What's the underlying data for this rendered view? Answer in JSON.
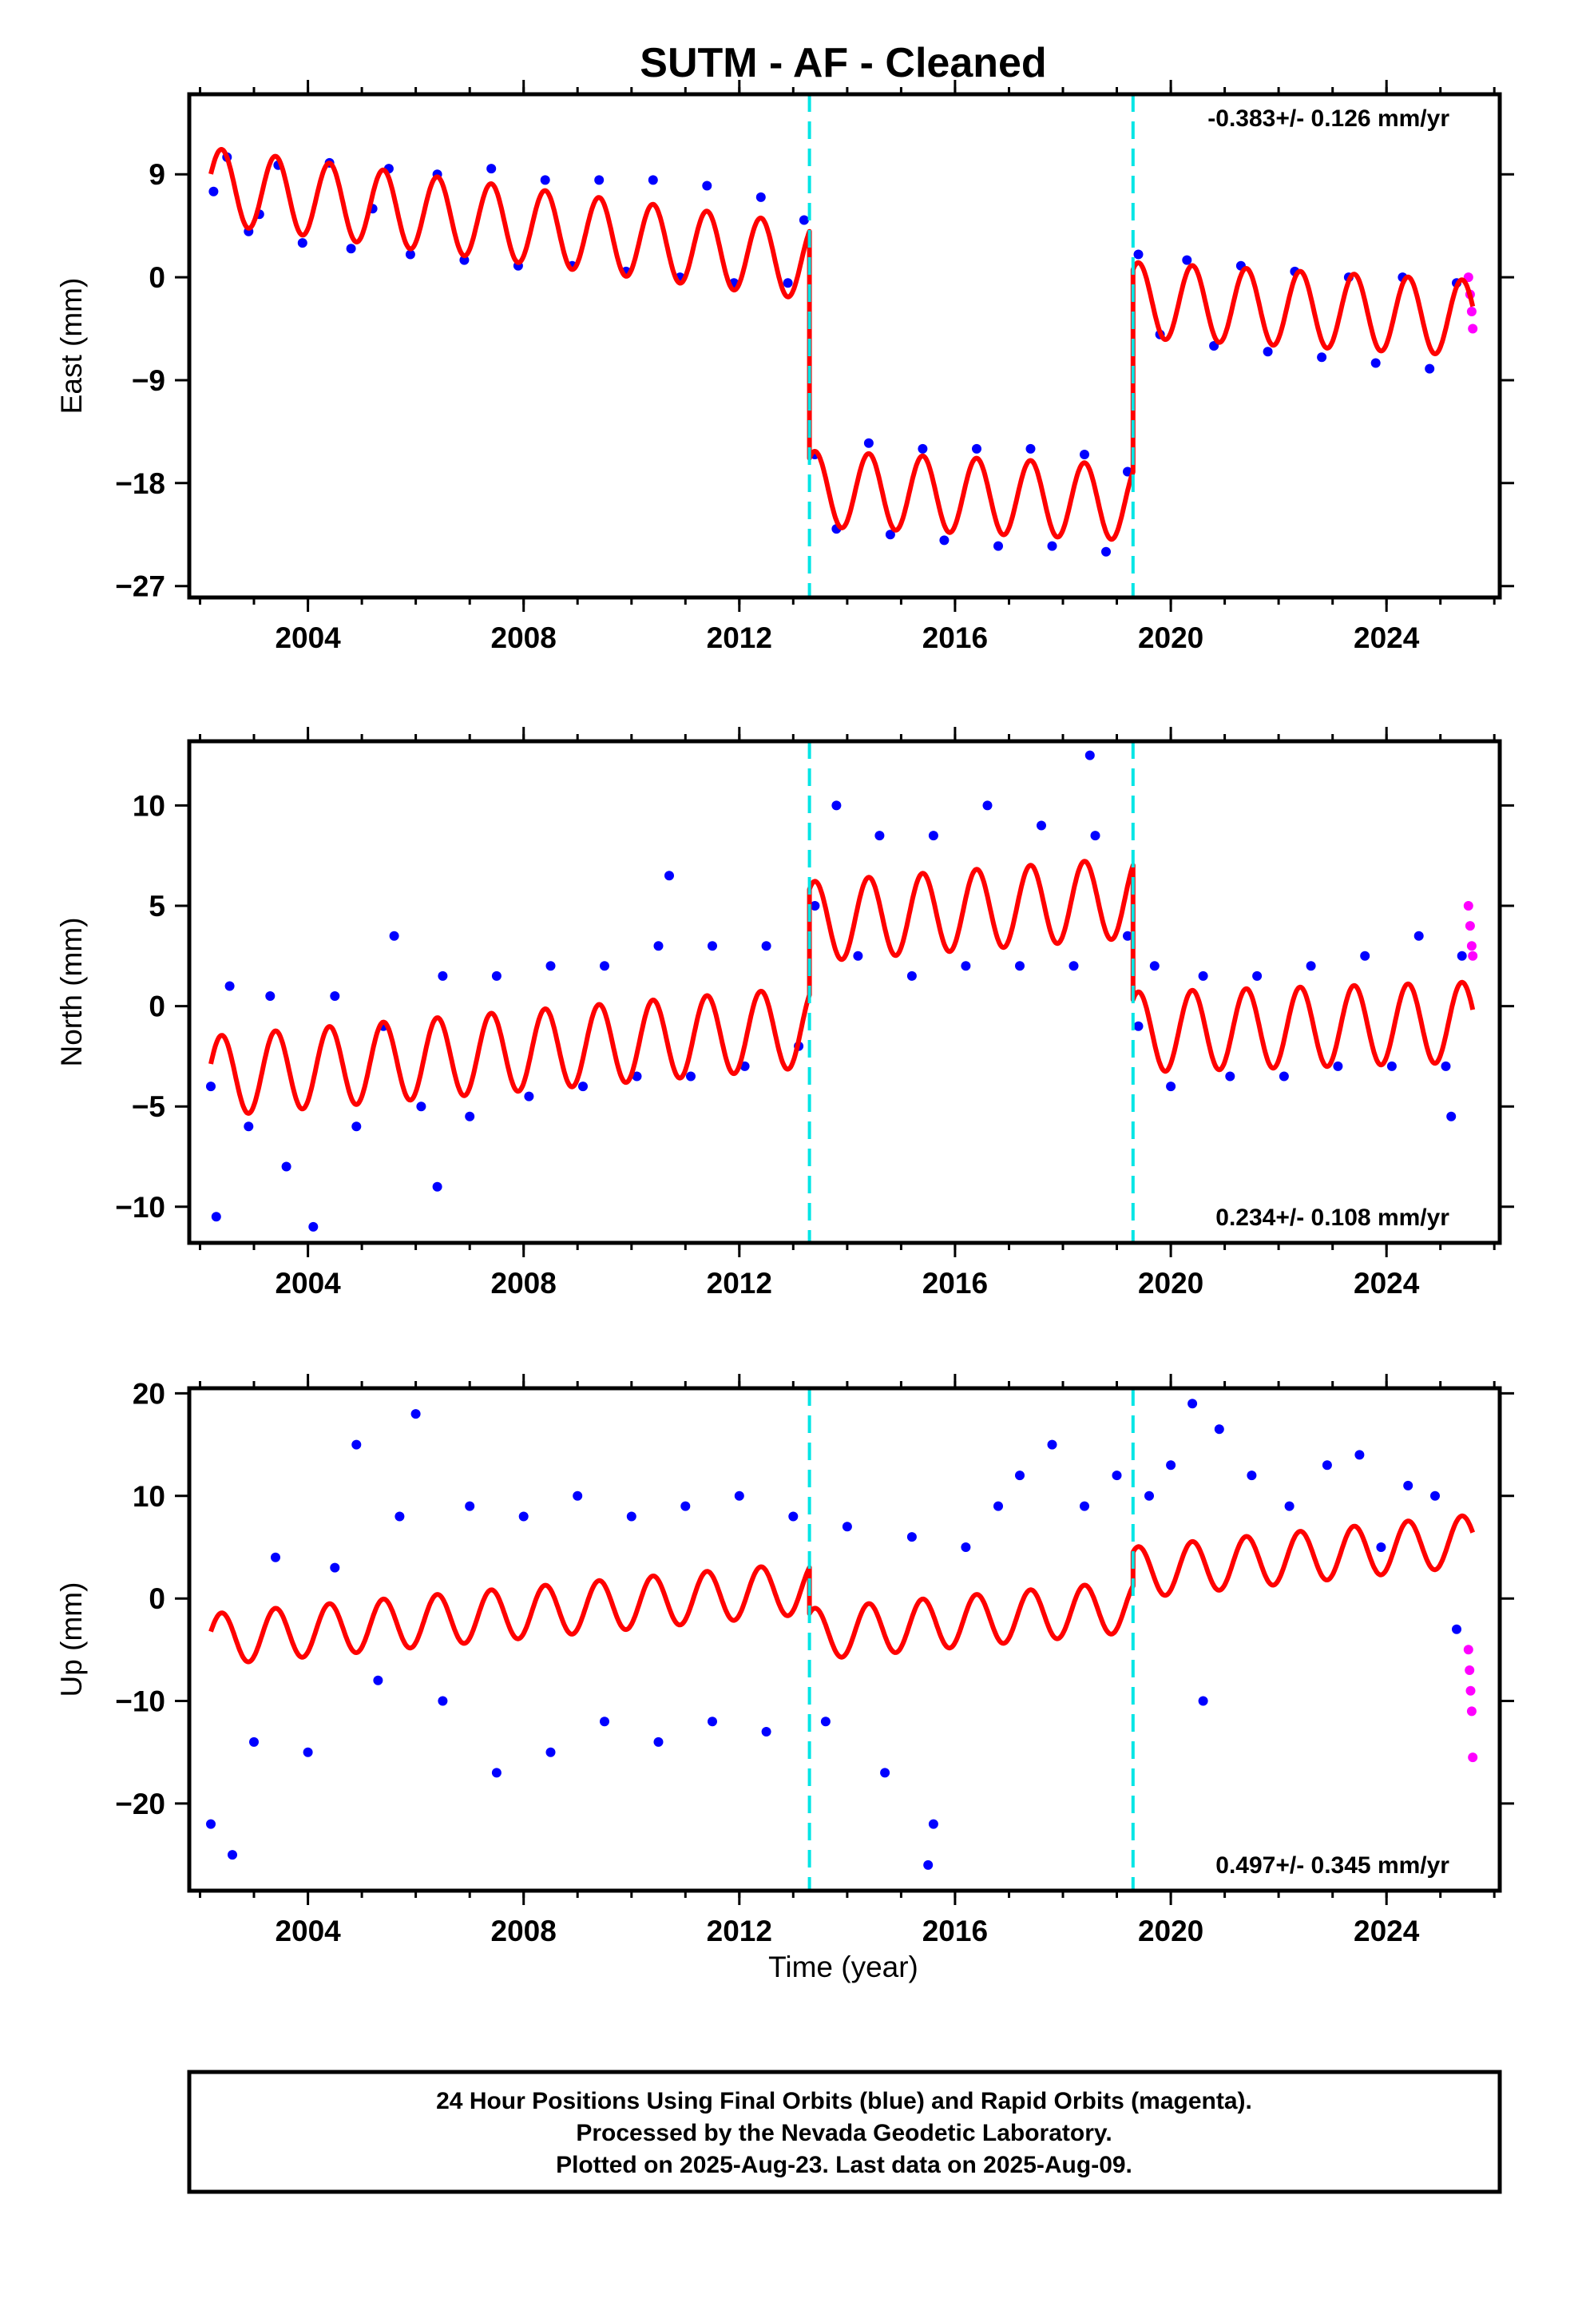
{
  "title": "SUTM  - AF - Cleaned",
  "xlabel": "Time (year)",
  "footer": {
    "line1": "24 Hour Positions Using Final Orbits (blue) and Rapid Orbits (magenta).",
    "line2": "Processed by the Nevada Geodetic Laboratory.",
    "line3": "Plotted on 2025-Aug-23. Last data on 2025-Aug-09."
  },
  "colors": {
    "final": "#0000ff",
    "rapid": "#ff00ff",
    "model": "#ff0000",
    "step": "#00e5e5"
  },
  "chart_data": [
    {
      "type": "scatter",
      "ylabel": "East (mm)",
      "rate": "-0.383+/- 0.126 mm/yr",
      "xlim": [
        2001.8,
        2026.1
      ],
      "ylim": [
        -28,
        16
      ],
      "xticks": [
        2004,
        2008,
        2012,
        2016,
        2020,
        2024
      ],
      "yticks": [
        9,
        0,
        -9,
        -18,
        -27
      ],
      "ytick_labels": [
        "9",
        "0",
        "−9",
        "−18",
        "−27"
      ],
      "steps": [
        2013.3,
        2019.3
      ],
      "series": [
        {
          "points": [
            [
              2002.25,
              7.5
            ],
            [
              2002.5,
              10.5
            ],
            [
              2002.9,
              4.0
            ],
            [
              2003.1,
              5.5
            ],
            [
              2003.45,
              9.8
            ],
            [
              2003.9,
              3.0
            ],
            [
              2004.4,
              10.0
            ],
            [
              2004.8,
              2.5
            ],
            [
              2005.2,
              6.0
            ],
            [
              2005.5,
              9.5
            ],
            [
              2005.9,
              2.0
            ],
            [
              2006.4,
              9.0
            ],
            [
              2006.9,
              1.5
            ],
            [
              2007.4,
              9.5
            ],
            [
              2007.9,
              1.0
            ],
            [
              2008.4,
              8.5
            ],
            [
              2008.9,
              1.0
            ],
            [
              2009.4,
              8.5
            ],
            [
              2009.9,
              0.5
            ],
            [
              2010.4,
              8.5
            ],
            [
              2010.9,
              0.0
            ],
            [
              2011.4,
              8.0
            ],
            [
              2011.9,
              -0.5
            ],
            [
              2012.4,
              7.0
            ],
            [
              2012.9,
              -0.5
            ],
            [
              2013.2,
              5.0
            ],
            [
              2013.4,
              -15.5
            ],
            [
              2013.8,
              -22.0
            ],
            [
              2014.4,
              -14.5
            ],
            [
              2014.8,
              -22.5
            ],
            [
              2015.4,
              -15.0
            ],
            [
              2015.8,
              -23.0
            ],
            [
              2016.4,
              -15.0
            ],
            [
              2016.8,
              -23.5
            ],
            [
              2017.4,
              -15.0
            ],
            [
              2017.8,
              -23.5
            ],
            [
              2018.4,
              -15.5
            ],
            [
              2018.8,
              -24.0
            ],
            [
              2019.2,
              -17.0
            ],
            [
              2019.4,
              2.0
            ],
            [
              2019.8,
              -5.0
            ],
            [
              2020.3,
              1.5
            ],
            [
              2020.8,
              -6.0
            ],
            [
              2021.3,
              1.0
            ],
            [
              2021.8,
              -6.5
            ],
            [
              2022.3,
              0.5
            ],
            [
              2022.8,
              -7.0
            ],
            [
              2023.3,
              0.0
            ],
            [
              2023.8,
              -7.5
            ],
            [
              2024.3,
              0.0
            ],
            [
              2024.8,
              -8.0
            ],
            [
              2025.3,
              -0.5
            ]
          ]
        },
        {
          "points": [
            [
              2025.52,
              0.0
            ],
            [
              2025.55,
              -1.5
            ],
            [
              2025.58,
              -3.0
            ],
            [
              2025.6,
              -4.5
            ]
          ]
        }
      ],
      "model": {
        "segments": [
          {
            "x0": 2002.2,
            "x1": 2013.3,
            "offset": 8.0,
            "trend": -0.6,
            "amp": 3.3
          },
          {
            "x0": 2013.3,
            "x1": 2019.3,
            "offset": -18.5,
            "trend": -0.2,
            "amp": 3.3
          },
          {
            "x0": 2019.3,
            "x1": 2025.6,
            "offset": -2.0,
            "trend": -0.25,
            "amp": 3.3
          }
        ]
      }
    },
    {
      "type": "scatter",
      "ylabel": "North (mm)",
      "rate": "0.234+/- 0.108 mm/yr",
      "xlim": [
        2001.8,
        2026.1
      ],
      "ylim": [
        -11.8,
        13.2
      ],
      "xticks": [
        2004,
        2008,
        2012,
        2016,
        2020,
        2024
      ],
      "yticks": [
        10,
        5,
        0,
        -5,
        -10
      ],
      "ytick_labels": [
        "10",
        "5",
        "0",
        "−5",
        "−10"
      ],
      "steps": [
        2013.3,
        2019.3
      ],
      "series": [
        {
          "points": [
            [
              2002.2,
              -4.0
            ],
            [
              2002.3,
              -10.5
            ],
            [
              2002.55,
              1.0
            ],
            [
              2002.9,
              -6.0
            ],
            [
              2003.3,
              0.5
            ],
            [
              2003.6,
              -8.0
            ],
            [
              2004.1,
              -11.0
            ],
            [
              2004.5,
              0.5
            ],
            [
              2004.9,
              -6.0
            ],
            [
              2005.4,
              -1.0
            ],
            [
              2005.6,
              3.5
            ],
            [
              2006.1,
              -5.0
            ],
            [
              2006.5,
              1.5
            ],
            [
              2006.4,
              -9.0
            ],
            [
              2007.0,
              -5.5
            ],
            [
              2007.5,
              1.5
            ],
            [
              2008.1,
              -4.5
            ],
            [
              2008.5,
              2.0
            ],
            [
              2009.1,
              -4.0
            ],
            [
              2009.5,
              2.0
            ],
            [
              2010.1,
              -3.5
            ],
            [
              2010.5,
              3.0
            ],
            [
              2010.7,
              6.5
            ],
            [
              2011.1,
              -3.5
            ],
            [
              2011.5,
              3.0
            ],
            [
              2012.1,
              -3.0
            ],
            [
              2012.5,
              3.0
            ],
            [
              2013.1,
              -2.0
            ],
            [
              2013.4,
              5.0
            ],
            [
              2013.8,
              10.0
            ],
            [
              2014.2,
              2.5
            ],
            [
              2014.6,
              8.5
            ],
            [
              2015.2,
              1.5
            ],
            [
              2015.6,
              8.5
            ],
            [
              2016.2,
              2.0
            ],
            [
              2016.6,
              10.0
            ],
            [
              2017.2,
              2.0
            ],
            [
              2017.6,
              9.0
            ],
            [
              2018.2,
              2.0
            ],
            [
              2018.6,
              8.5
            ],
            [
              2018.5,
              12.5
            ],
            [
              2019.2,
              3.5
            ],
            [
              2019.4,
              -1.0
            ],
            [
              2019.7,
              2.0
            ],
            [
              2020.0,
              -4.0
            ],
            [
              2020.6,
              1.5
            ],
            [
              2021.1,
              -3.5
            ],
            [
              2021.6,
              1.5
            ],
            [
              2022.1,
              -3.5
            ],
            [
              2022.6,
              2.0
            ],
            [
              2023.1,
              -3.0
            ],
            [
              2023.6,
              2.5
            ],
            [
              2024.1,
              -3.0
            ],
            [
              2024.6,
              3.5
            ],
            [
              2025.1,
              -3.0
            ],
            [
              2025.2,
              -5.5
            ],
            [
              2025.4,
              2.5
            ]
          ]
        },
        {
          "points": [
            [
              2025.52,
              5.0
            ],
            [
              2025.55,
              4.0
            ],
            [
              2025.58,
              3.0
            ],
            [
              2025.6,
              2.5
            ]
          ]
        }
      ],
      "model": {
        "segments": [
          {
            "x0": 2002.2,
            "x1": 2013.3,
            "offset": -3.5,
            "trend": 0.22,
            "amp": 2.0
          },
          {
            "x0": 2013.3,
            "x1": 2019.3,
            "offset": 4.2,
            "trend": 0.2,
            "amp": 2.0
          },
          {
            "x0": 2019.3,
            "x1": 2025.6,
            "offset": -1.3,
            "trend": 0.08,
            "amp": 2.0
          }
        ]
      }
    },
    {
      "type": "scatter",
      "ylabel": "Up (mm)",
      "rate": "0.497+/- 0.345 mm/yr",
      "xlim": [
        2001.8,
        2026.1
      ],
      "ylim": [
        -28.5,
        20.5
      ],
      "xticks": [
        2004,
        2008,
        2012,
        2016,
        2020,
        2024
      ],
      "yticks": [
        20,
        10,
        0,
        -10,
        -20
      ],
      "ytick_labels": [
        "20",
        "10",
        "0",
        "−10",
        "−20"
      ],
      "steps": [
        2013.3,
        2019.3
      ],
      "series": [
        {
          "points": [
            [
              2002.2,
              -22.0
            ],
            [
              2002.6,
              -25.0
            ],
            [
              2003.0,
              -14.0
            ],
            [
              2003.4,
              4.0
            ],
            [
              2004.0,
              -15.0
            ],
            [
              2004.5,
              3.0
            ],
            [
              2004.9,
              15.0
            ],
            [
              2005.3,
              -8.0
            ],
            [
              2005.7,
              8.0
            ],
            [
              2006.0,
              18.0
            ],
            [
              2006.5,
              -10.0
            ],
            [
              2007.0,
              9.0
            ],
            [
              2007.5,
              -17.0
            ],
            [
              2008.0,
              8.0
            ],
            [
              2008.5,
              -15.0
            ],
            [
              2009.0,
              10.0
            ],
            [
              2009.5,
              -12.0
            ],
            [
              2010.0,
              8.0
            ],
            [
              2010.5,
              -14.0
            ],
            [
              2011.0,
              9.0
            ],
            [
              2011.5,
              -12.0
            ],
            [
              2012.0,
              10.0
            ],
            [
              2012.5,
              -13.0
            ],
            [
              2013.0,
              8.0
            ],
            [
              2013.6,
              -12.0
            ],
            [
              2014.0,
              7.0
            ],
            [
              2014.7,
              -17.0
            ],
            [
              2015.2,
              6.0
            ],
            [
              2015.5,
              -26.0
            ],
            [
              2015.6,
              -22.0
            ],
            [
              2016.2,
              5.0
            ],
            [
              2016.8,
              9.0
            ],
            [
              2017.2,
              12.0
            ],
            [
              2017.8,
              15.0
            ],
            [
              2018.4,
              9.0
            ],
            [
              2019.0,
              12.0
            ],
            [
              2019.6,
              10.0
            ],
            [
              2020.0,
              13.0
            ],
            [
              2020.4,
              19.0
            ],
            [
              2020.9,
              16.5
            ],
            [
              2020.6,
              -10.0
            ],
            [
              2021.5,
              12.0
            ],
            [
              2022.2,
              9.0
            ],
            [
              2022.9,
              13.0
            ],
            [
              2023.5,
              14.0
            ],
            [
              2023.9,
              5.0
            ],
            [
              2024.4,
              11.0
            ],
            [
              2024.9,
              10.0
            ],
            [
              2025.3,
              -3.0
            ]
          ]
        },
        {
          "points": [
            [
              2025.52,
              -5.0
            ],
            [
              2025.54,
              -7.0
            ],
            [
              2025.56,
              -9.0
            ],
            [
              2025.58,
              -11.0
            ],
            [
              2025.6,
              -15.5
            ]
          ]
        }
      ],
      "model": {
        "segments": [
          {
            "x0": 2002.2,
            "x1": 2013.3,
            "offset": -4.0,
            "trend": 0.45,
            "amp": 2.5
          },
          {
            "x0": 2013.3,
            "x1": 2019.3,
            "offset": -3.5,
            "trend": 0.45,
            "amp": 2.5
          },
          {
            "x0": 2019.3,
            "x1": 2025.6,
            "offset": 2.5,
            "trend": 0.5,
            "amp": 2.5
          }
        ]
      }
    }
  ]
}
